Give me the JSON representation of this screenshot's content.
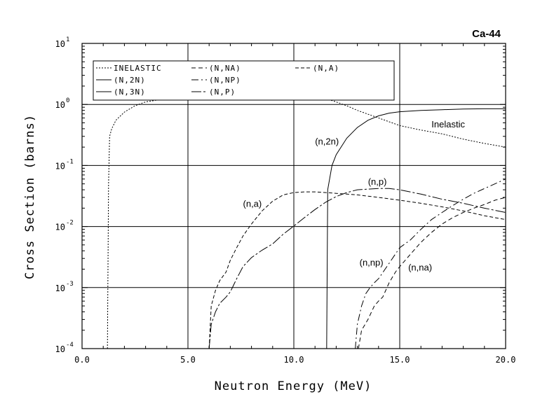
{
  "chart_data": {
    "type": "line",
    "title": "Ca-44",
    "xlabel": "Neutron Energy (MeV)",
    "ylabel": "Cross Section (barns)",
    "xlim": [
      0,
      20
    ],
    "ylim": [
      0.0001,
      10
    ],
    "yscale": "log",
    "grid": true,
    "legend_position": "top-left",
    "x_ticks": [
      "0.0",
      "5.0",
      "10.0",
      "15.0",
      "20.0"
    ],
    "x_tick_values": [
      0,
      5,
      10,
      15,
      20
    ],
    "y_ticks": [
      {
        "value": 10,
        "base": "10",
        "exp": "1"
      },
      {
        "value": 1,
        "base": "10",
        "exp": "0"
      },
      {
        "value": 0.1,
        "base": "10",
        "exp": "-1"
      },
      {
        "value": 0.01,
        "base": "10",
        "exp": "-2"
      },
      {
        "value": 0.001,
        "base": "10",
        "exp": "-3"
      },
      {
        "value": 0.0001,
        "base": "10",
        "exp": "-4"
      }
    ],
    "series": [
      {
        "name": "INELASTIC",
        "dash": "2,2",
        "x": [
          1.2,
          1.25,
          1.3,
          1.4,
          1.6,
          2.0,
          2.5,
          3.0,
          4.0,
          5.0,
          6.0,
          7.0,
          8.0,
          9.0,
          10.0,
          11.0,
          11.5,
          12.0,
          12.5,
          13.0,
          14.0,
          15.0,
          16.0,
          17.0,
          18.0,
          19.0,
          20.0
        ],
        "y": [
          0.0001,
          0.05,
          0.3,
          0.4,
          0.55,
          0.75,
          0.95,
          1.1,
          1.25,
          1.3,
          1.3,
          1.3,
          1.3,
          1.3,
          1.3,
          1.3,
          1.25,
          1.1,
          0.95,
          0.8,
          0.6,
          0.45,
          0.38,
          0.33,
          0.27,
          0.23,
          0.2
        ]
      },
      {
        "name": "(N,2N)",
        "dash": "",
        "x": [
          11.55,
          11.6,
          11.8,
          12.0,
          12.5,
          13.0,
          13.5,
          14.0,
          14.5,
          15.0,
          16.0,
          17.0,
          18.0,
          19.0,
          20.0
        ],
        "y": [
          0.0001,
          0.04,
          0.1,
          0.15,
          0.28,
          0.42,
          0.55,
          0.65,
          0.72,
          0.76,
          0.8,
          0.82,
          0.84,
          0.85,
          0.85
        ]
      },
      {
        "name": "(N,NP)",
        "dash": "10,4,2,4",
        "x": [
          12.9,
          13.0,
          13.2,
          13.4,
          13.6,
          13.8,
          14.0,
          14.5,
          15.0,
          15.5,
          16.0,
          16.5,
          17.0,
          17.5,
          18.0,
          18.5,
          19.0,
          19.5,
          20.0
        ],
        "y": [
          0.0001,
          0.00025,
          0.0005,
          0.0008,
          0.001,
          0.0012,
          0.0014,
          0.0025,
          0.0045,
          0.006,
          0.009,
          0.013,
          0.017,
          0.022,
          0.028,
          0.035,
          0.042,
          0.05,
          0.06
        ]
      },
      {
        "name": "(N,NA)",
        "dash": "6,4",
        "x": [
          13.05,
          13.2,
          13.5,
          13.8,
          14.0,
          14.2,
          14.5,
          14.8,
          15.0,
          15.5,
          16.0,
          16.5,
          17.0,
          17.5,
          18.0,
          18.5,
          19.0,
          19.5,
          20.0
        ],
        "y": [
          0.0001,
          0.0002,
          0.0003,
          0.0005,
          0.0006,
          0.0007,
          0.0012,
          0.0018,
          0.0022,
          0.0035,
          0.0055,
          0.008,
          0.011,
          0.014,
          0.017,
          0.02,
          0.023,
          0.027,
          0.03
        ]
      },
      {
        "name": "(N,P)",
        "dash": "14,3,3,3",
        "x": [
          6.0,
          6.1,
          6.3,
          6.5,
          6.8,
          7.0,
          7.3,
          7.6,
          8.0,
          8.5,
          9.0,
          9.5,
          10.0,
          10.5,
          11.0,
          11.5,
          12.0,
          12.5,
          13.0,
          13.5,
          14.0,
          14.5,
          15.0,
          16.0,
          17.0,
          18.0,
          19.0,
          20.0
        ],
        "y": [
          0.0001,
          0.00025,
          0.0004,
          0.00055,
          0.0007,
          0.00085,
          0.0014,
          0.0022,
          0.0031,
          0.0041,
          0.0052,
          0.0075,
          0.0102,
          0.014,
          0.019,
          0.025,
          0.031,
          0.036,
          0.04,
          0.041,
          0.042,
          0.042,
          0.04,
          0.034,
          0.028,
          0.024,
          0.02,
          0.017
        ]
      },
      {
        "name": "(N,A)",
        "dash": "5,3",
        "x": [
          6.0,
          6.1,
          6.3,
          6.5,
          6.8,
          7.0,
          7.3,
          7.6,
          8.0,
          8.5,
          9.0,
          9.5,
          10.0,
          10.5,
          11.0,
          11.5,
          12.0,
          13.0,
          14.0,
          15.0,
          16.0,
          17.0,
          18.0,
          19.0,
          20.0
        ],
        "y": [
          0.0001,
          0.0005,
          0.0009,
          0.0013,
          0.0018,
          0.0028,
          0.0045,
          0.007,
          0.011,
          0.018,
          0.026,
          0.033,
          0.036,
          0.037,
          0.037,
          0.036,
          0.035,
          0.033,
          0.03,
          0.027,
          0.024,
          0.021,
          0.018,
          0.015,
          0.013
        ]
      },
      {
        "name": "(N,3N)",
        "dash": "",
        "x": [],
        "y": []
      }
    ],
    "legend": [
      {
        "label": "INELASTIC",
        "dash": "2,2"
      },
      {
        "label": "(N,NA)",
        "dash": "6,4"
      },
      {
        "label": "(N,A)",
        "dash": "5,3"
      },
      {
        "label": "(N,2N)",
        "dash": ""
      },
      {
        "label": "(N,NP)",
        "dash": "10,4,2,4"
      },
      {
        "label": "(N,3N)",
        "dash": ""
      },
      {
        "label": "(N,P)",
        "dash": "14,3,3,3"
      }
    ],
    "annotations": [
      {
        "text": "Inelastic",
        "x": 16.5,
        "y": 0.42
      },
      {
        "text": "(n,2n)",
        "x": 11.0,
        "y": 0.22
      },
      {
        "text": "(n,p)",
        "x": 13.5,
        "y": 0.048
      },
      {
        "text": "(n,a)",
        "x": 7.6,
        "y": 0.021
      },
      {
        "text": "(n,np)",
        "x": 13.1,
        "y": 0.0023
      },
      {
        "text": "(n,na)",
        "x": 15.4,
        "y": 0.0019
      }
    ]
  }
}
